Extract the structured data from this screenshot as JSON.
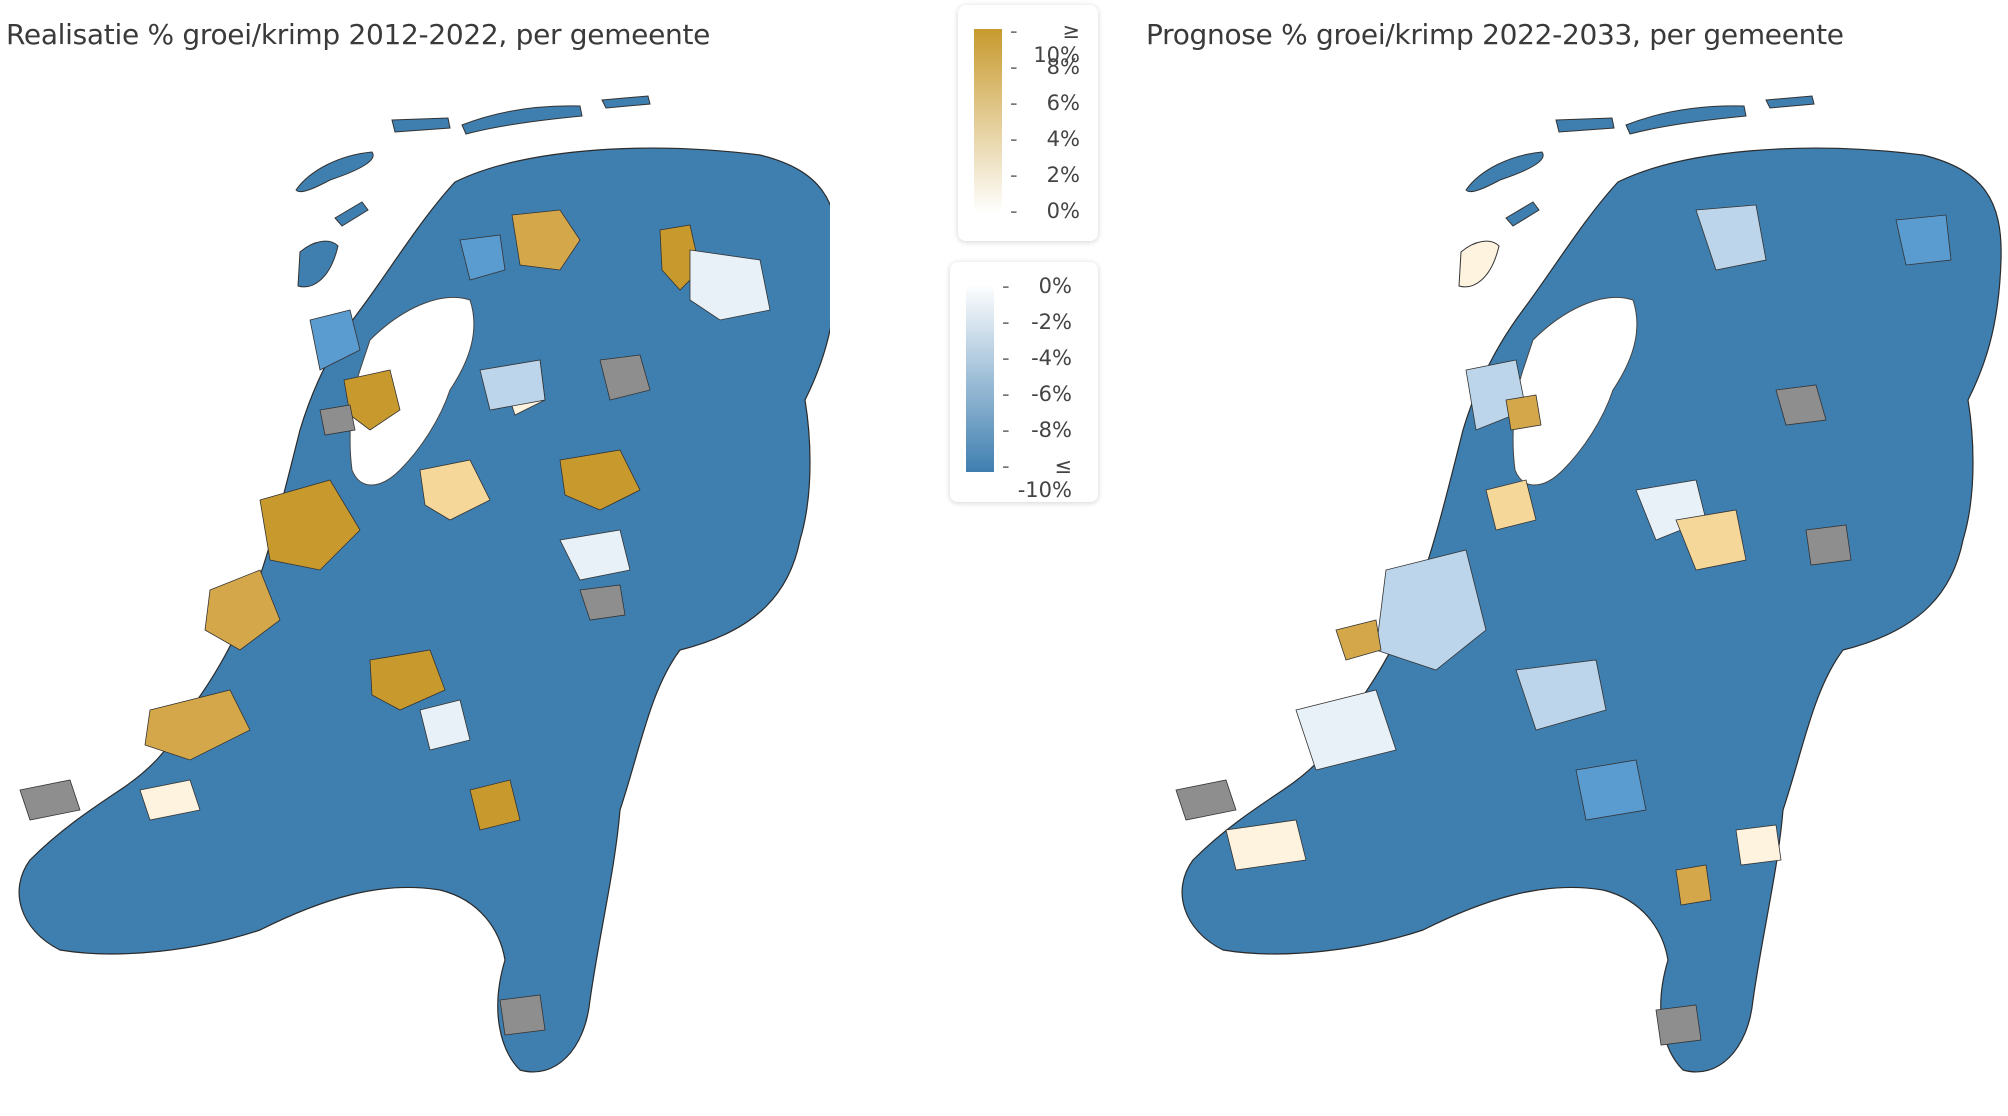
{
  "maps": {
    "left": {
      "title": "Realisatie % groei/krimp 2012-2022, per gemeente"
    },
    "right": {
      "title": "Prognose % groei/krimp 2022-2033, per gemeente"
    }
  },
  "legend": {
    "positive": {
      "ticks": [
        "≥ 10%",
        "8%",
        "6%",
        "4%",
        "2%",
        "0%"
      ],
      "color_from": "#c89a2e",
      "color_to": "#ffffff"
    },
    "negative": {
      "ticks": [
        "0%",
        "-2%",
        "-4%",
        "-6%",
        "-8%",
        "≤ -10%"
      ],
      "color_from": "#ffffff",
      "color_to": "#3f7fb0"
    },
    "no_data_color": "#8e8e8e"
  }
}
